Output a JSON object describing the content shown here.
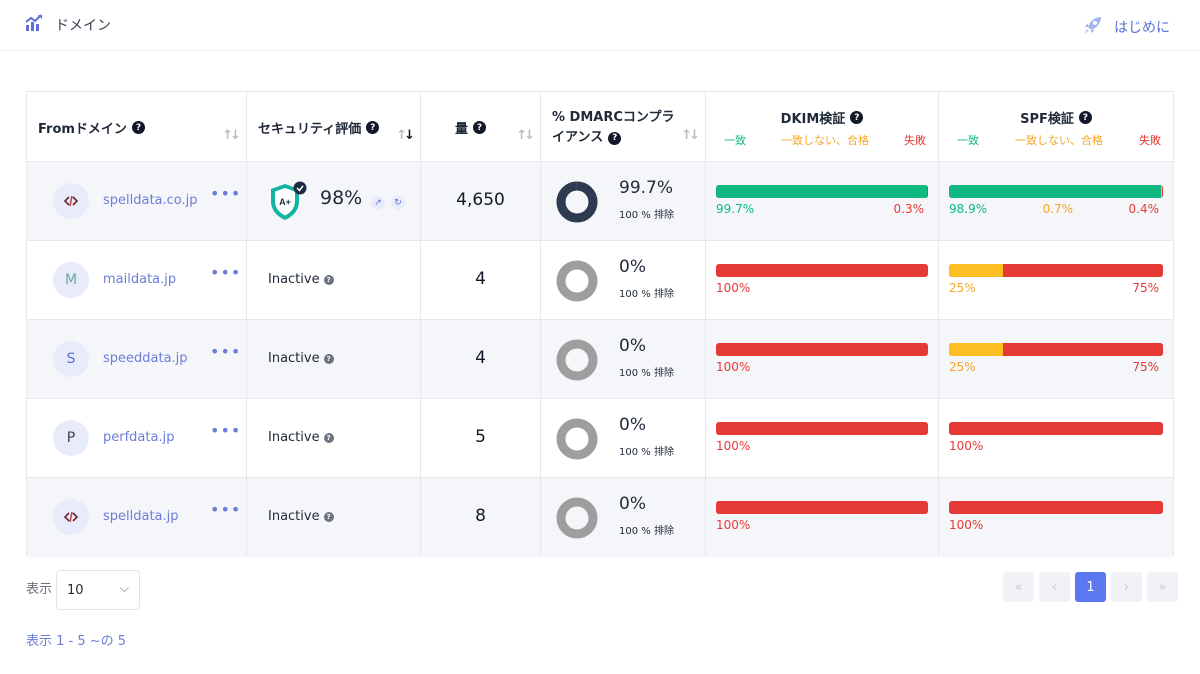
{
  "header": {
    "title": "ドメイン",
    "start_label": "はじめに"
  },
  "columns": {
    "from": "Fromドメイン",
    "security": "セキュリティ評価",
    "volume": "量",
    "dmarc_line1": "% DMARCコンプラ",
    "dmarc_line2": "イアンス",
    "dkim": "DKIM検証",
    "spf": "SPF検証",
    "sub_match": "一致",
    "sub_nomatch": "一致しない、合格",
    "sub_fail": "失敗"
  },
  "help_glyph": "?",
  "dots": "•••",
  "rows": [
    {
      "avatar": "",
      "avatar_icon": "code-logo",
      "domain": "spelldata.co.jp",
      "security_grade": "A+",
      "security_pct": "98%",
      "volume": "4,650",
      "dmarc_pct": "99.7%",
      "dmarc_sub": "100 % 排除",
      "dmarc_ratio": 0.997,
      "dkim": {
        "pass": 99.7,
        "neutral": 0,
        "fail": 0.3,
        "labels": [
          "99.7%",
          "",
          "0.3%"
        ]
      },
      "spf": {
        "pass": 98.9,
        "neutral": 0.7,
        "fail": 0.4,
        "labels": [
          "98.9%",
          "0.7%",
          "0.4%"
        ]
      }
    },
    {
      "avatar": "M",
      "domain": "maildata.jp",
      "security_text": "Inactive",
      "volume": "4",
      "dmarc_pct": "0%",
      "dmarc_sub": "100 % 排除",
      "dmarc_ratio": 0,
      "dkim": {
        "pass": 0,
        "neutral": 0,
        "fail": 100,
        "labels": [
          "100%",
          "",
          ""
        ]
      },
      "spf": {
        "pass": 0,
        "neutral": 25,
        "fail": 75,
        "labels": [
          "25%",
          "",
          "75%"
        ]
      }
    },
    {
      "avatar": "S",
      "domain": "speeddata.jp",
      "security_text": "Inactive",
      "volume": "4",
      "dmarc_pct": "0%",
      "dmarc_sub": "100 % 排除",
      "dmarc_ratio": 0,
      "dkim": {
        "pass": 0,
        "neutral": 0,
        "fail": 100,
        "labels": [
          "100%",
          "",
          ""
        ]
      },
      "spf": {
        "pass": 0,
        "neutral": 25,
        "fail": 75,
        "labels": [
          "25%",
          "",
          "75%"
        ]
      }
    },
    {
      "avatar": "P",
      "domain": "perfdata.jp",
      "security_text": "Inactive",
      "volume": "5",
      "dmarc_pct": "0%",
      "dmarc_sub": "100 % 排除",
      "dmarc_ratio": 0,
      "dkim": {
        "pass": 0,
        "neutral": 0,
        "fail": 100,
        "labels": [
          "100%",
          "",
          ""
        ]
      },
      "spf": {
        "pass": 0,
        "neutral": 0,
        "fail": 100,
        "labels": [
          "100%",
          "",
          ""
        ]
      }
    },
    {
      "avatar": "",
      "avatar_icon": "code-logo",
      "domain": "spelldata.jp",
      "security_text": "Inactive",
      "volume": "8",
      "dmarc_pct": "0%",
      "dmarc_sub": "100 % 排除",
      "dmarc_ratio": 0,
      "dkim": {
        "pass": 0,
        "neutral": 0,
        "fail": 100,
        "labels": [
          "100%",
          "",
          ""
        ]
      },
      "spf": {
        "pass": 0,
        "neutral": 0,
        "fail": 100,
        "labels": [
          "100%",
          "",
          ""
        ]
      }
    }
  ],
  "pagination": {
    "show_label": "表示",
    "page_size": "10",
    "summary": "表示 1 - 5 ~の 5",
    "current_page": "1"
  },
  "colors": {
    "pass": "#10b981",
    "neutral": "#fbbf24",
    "fail": "#e53935",
    "accent": "#5b78f0",
    "donut_dark": "#2d3a4f",
    "donut_gray": "#9e9e9e"
  }
}
